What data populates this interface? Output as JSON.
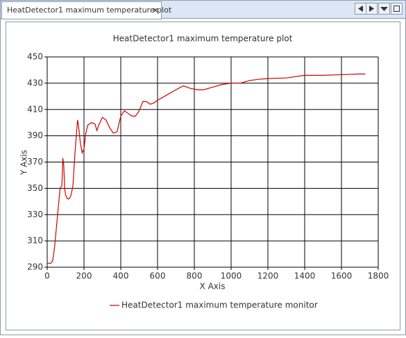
{
  "tab_title": "HeatDetector1 maximum temperature plot",
  "chart_data": {
    "type": "line",
    "title": "HeatDetector1 maximum temperature plot",
    "x_label": "X Axis",
    "y_label": "Y Axis",
    "x": [
      0,
      20,
      30,
      40,
      50,
      60,
      70,
      80,
      85,
      90,
      95,
      100,
      110,
      120,
      130,
      140,
      150,
      160,
      165,
      170,
      180,
      190,
      200,
      210,
      220,
      240,
      260,
      270,
      280,
      300,
      320,
      340,
      360,
      380,
      400,
      420,
      440,
      460,
      480,
      500,
      520,
      540,
      560,
      580,
      600,
      650,
      700,
      740,
      780,
      820,
      850,
      900,
      950,
      1000,
      1050,
      1100,
      1150,
      1200,
      1300,
      1400,
      1500,
      1600,
      1700,
      1730
    ],
    "series": [
      {
        "name": "HeatDetector1 maximum temperature monitor",
        "color": "#cc0000",
        "values": [
          293,
          293,
          295,
          305,
          320,
          335,
          350,
          352,
          373,
          368,
          350,
          345,
          342,
          342,
          345,
          352,
          375,
          393,
          402,
          398,
          385,
          377,
          380,
          392,
          398,
          400,
          399,
          394,
          398,
          404,
          402,
          396,
          392,
          393,
          405,
          409,
          407,
          405,
          405,
          409,
          416,
          416,
          414,
          415,
          417,
          421,
          425,
          428,
          426,
          425,
          425,
          427,
          429,
          430,
          430,
          432,
          433,
          433.5,
          434,
          436,
          436,
          436.5,
          437,
          437
        ]
      }
    ],
    "xlim": [
      0,
      1800
    ],
    "ylim": [
      290,
      450
    ],
    "xticks": [
      0,
      200,
      400,
      600,
      800,
      1000,
      1200,
      1400,
      1600,
      1800
    ],
    "yticks": [
      290,
      310,
      330,
      350,
      370,
      390,
      410,
      430,
      450
    ],
    "grid": true,
    "legend": "bottom"
  }
}
